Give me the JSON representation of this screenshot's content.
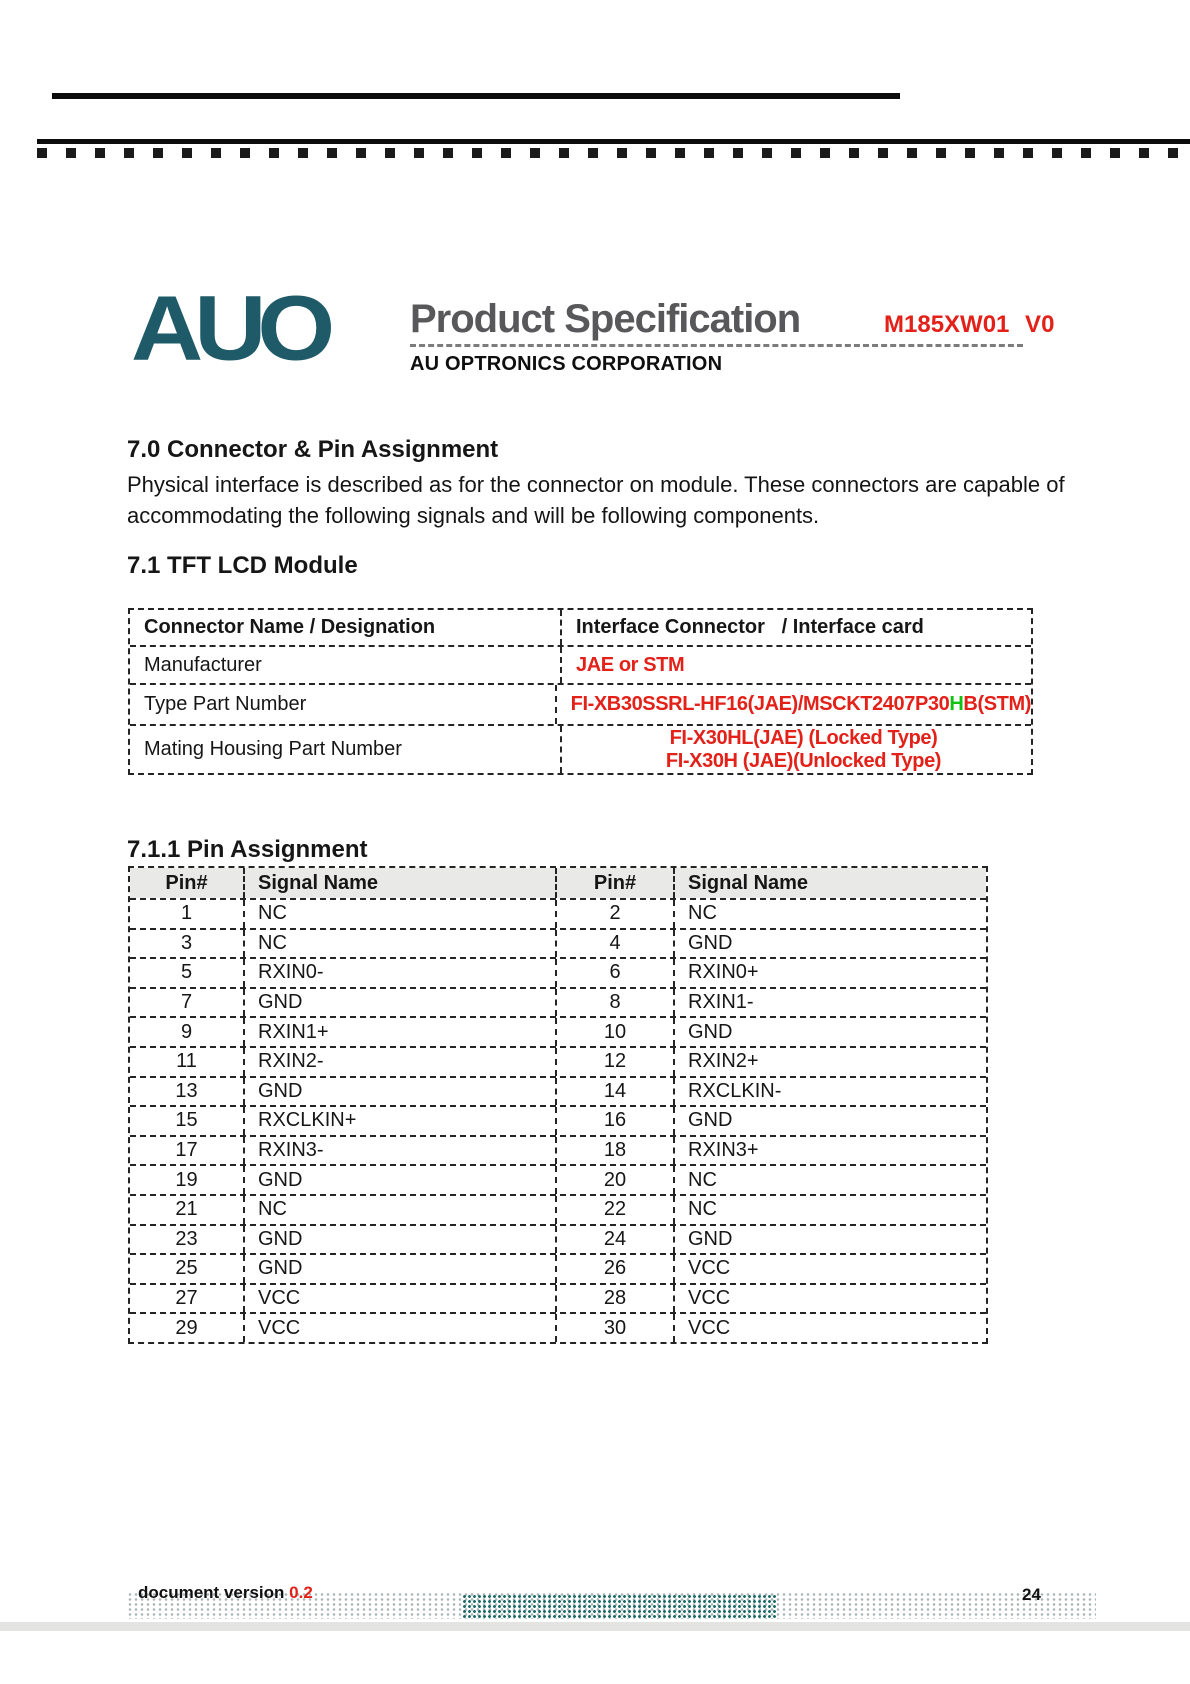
{
  "header": {
    "logo_text": "AUO",
    "title": "Product Specification",
    "company": "AU OPTRONICS CORPORATION",
    "part_number": "M185XW01 V0"
  },
  "colors": {
    "logo_teal": "#1e5a68",
    "accent_red": "#e32119",
    "accent_green": "#12c212",
    "title_gray": "#58585a",
    "footer_bar_gray": "#e3e3e1",
    "pin_header_gray": "#e9e9e7"
  },
  "section_70": {
    "heading": "7.0 Connector & Pin Assignment",
    "body_line1": "Physical interface is described as for the connector on module. These connectors are capable of",
    "body_line2": "accommodating the following signals and will be following components."
  },
  "section_71": {
    "heading": "7.1 TFT LCD Module",
    "table": {
      "col_headers": [
        "Connector Name / Designation",
        "Interface Connector   / Interface card"
      ],
      "manufacturer": {
        "label": "Manufacturer",
        "value": "JAE or STM"
      },
      "type_part_number": {
        "label": "Type Part Number",
        "value_pre": "FI-XB30SSRL-HF16(JAE)/MSCKT2407P30",
        "value_green": "H",
        "value_post": "B(STM)"
      },
      "mating_housing": {
        "label": "Mating Housing Part Number",
        "value_line1": "FI-X30HL(JAE) (Locked Type)",
        "value_line2": "FI-X30H (JAE)(Unlocked Type)"
      }
    }
  },
  "section_711": {
    "heading": "7.1.1 Pin Assignment",
    "table": {
      "col_headers": [
        "Pin#",
        "Signal Name",
        "Pin#",
        "Signal Name"
      ],
      "rows": [
        [
          "1",
          "NC",
          "2",
          "NC"
        ],
        [
          "3",
          "NC",
          "4",
          "GND"
        ],
        [
          "5",
          "RXIN0-",
          "6",
          "RXIN0+"
        ],
        [
          "7",
          "GND",
          "8",
          "RXIN1-"
        ],
        [
          "9",
          "RXIN1+",
          "10",
          "GND"
        ],
        [
          "11",
          "RXIN2-",
          "12",
          "RXIN2+"
        ],
        [
          "13",
          "GND",
          "14",
          "RXCLKIN-"
        ],
        [
          "15",
          "RXCLKIN+",
          "16",
          "GND"
        ],
        [
          "17",
          "RXIN3-",
          "18",
          "RXIN3+"
        ],
        [
          "19",
          "GND",
          "20",
          "NC"
        ],
        [
          "21",
          "NC",
          "22",
          "NC"
        ],
        [
          "23",
          "GND",
          "24",
          "GND"
        ],
        [
          "25",
          "GND",
          "26",
          "VCC"
        ],
        [
          "27",
          "VCC",
          "28",
          "VCC"
        ],
        [
          "29",
          "VCC",
          "30",
          "VCC"
        ]
      ]
    }
  },
  "footer": {
    "doc_version_label": "document version ",
    "doc_version_value": "0.2",
    "page_number": "24"
  }
}
